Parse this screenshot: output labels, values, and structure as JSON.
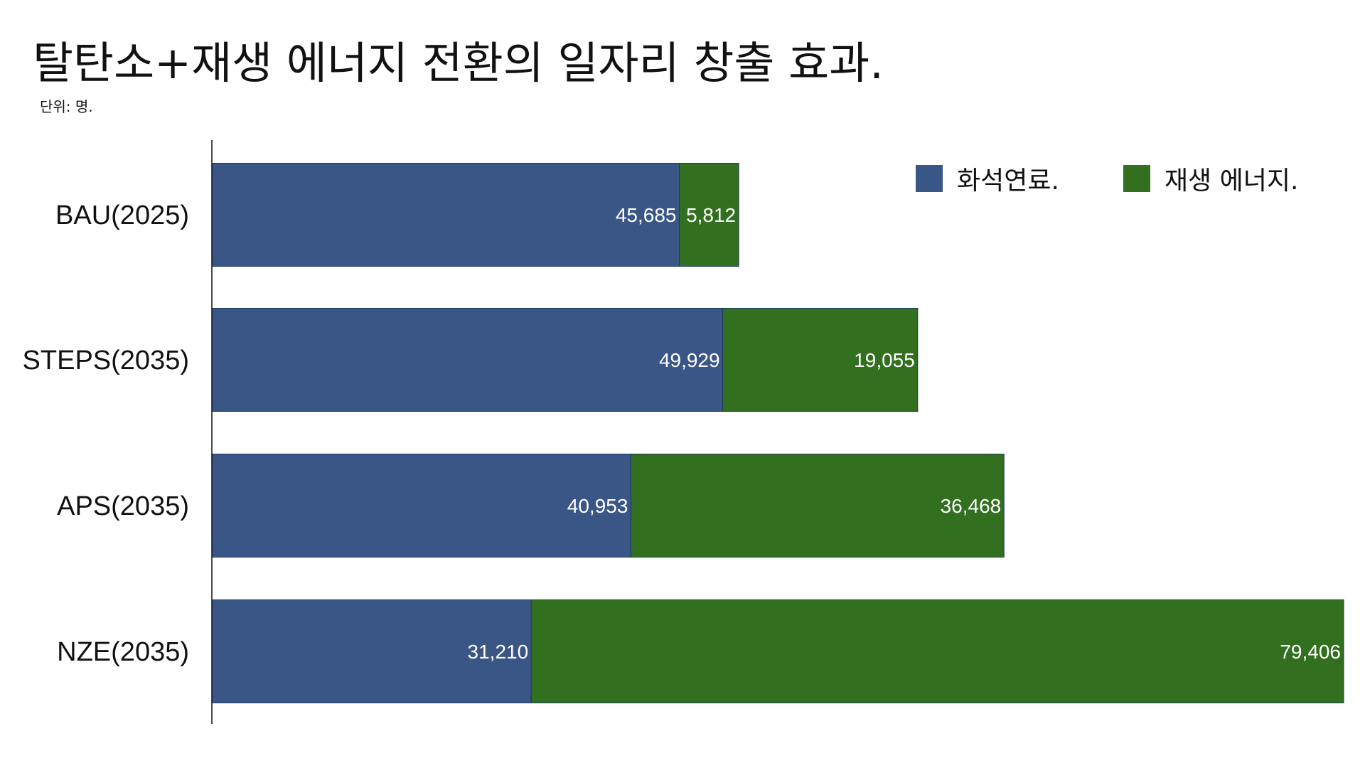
{
  "title": "탈탄소+재생 에너지 전환의 일자리 창출 효과.",
  "unit_note": "단위: 명.",
  "legend": [
    {
      "label": "화석연료.",
      "color": "#3a5687"
    },
    {
      "label": "재생 에너지.",
      "color": "#327020"
    }
  ],
  "chart_data": {
    "type": "bar",
    "orientation": "horizontal",
    "stacked": true,
    "title": "탈탄소+재생 에너지 전환의 일자리 창출 효과.",
    "subtitle": "단위: 명.",
    "categories": [
      "BAU(2025)",
      "STEPS(2035)",
      "APS(2035)",
      "NZE(2035)"
    ],
    "series": [
      {
        "name": "화석연료.",
        "color": "#3a5687",
        "values": [
          45685,
          49929,
          40953,
          31210
        ],
        "labels": [
          "45,685",
          "49,929",
          "40,953",
          "31,210"
        ]
      },
      {
        "name": "재생 에너지.",
        "color": "#327020",
        "values": [
          5812,
          19055,
          36468,
          79406
        ],
        "labels": [
          "5,812",
          "19,055",
          "36,468",
          "79,406"
        ]
      }
    ],
    "xlim": [
      0,
      110616
    ],
    "grid": false,
    "legend_position": "top-right"
  }
}
